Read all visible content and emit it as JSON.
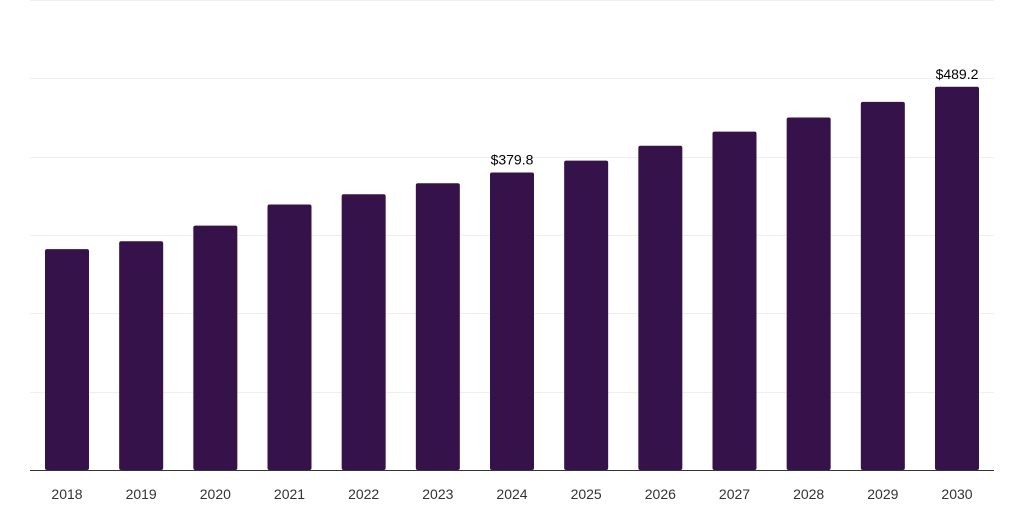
{
  "chart_data": {
    "type": "bar",
    "title": "",
    "xlabel": "",
    "ylabel": "",
    "categories": [
      "2018",
      "2019",
      "2020",
      "2021",
      "2022",
      "2023",
      "2024",
      "2025",
      "2026",
      "2027",
      "2028",
      "2029",
      "2030"
    ],
    "values": [
      282,
      292,
      312,
      339,
      352,
      366,
      379.8,
      395,
      414,
      432,
      450,
      470,
      489.2
    ],
    "data_labels": [
      {
        "category": "2024",
        "text": "$379.8"
      },
      {
        "category": "2030",
        "text": "$489.2"
      }
    ],
    "ylim": [
      0,
      600
    ],
    "y_gridlines": [
      0,
      100,
      200,
      300,
      400,
      500,
      600
    ],
    "y_tick_labels_visible": false,
    "grid": true,
    "legend": "none",
    "colors": {
      "bar": "#36124a",
      "grid": "#eeeeee",
      "axis": "#333333",
      "text": "#333333",
      "label": "#000000"
    }
  }
}
